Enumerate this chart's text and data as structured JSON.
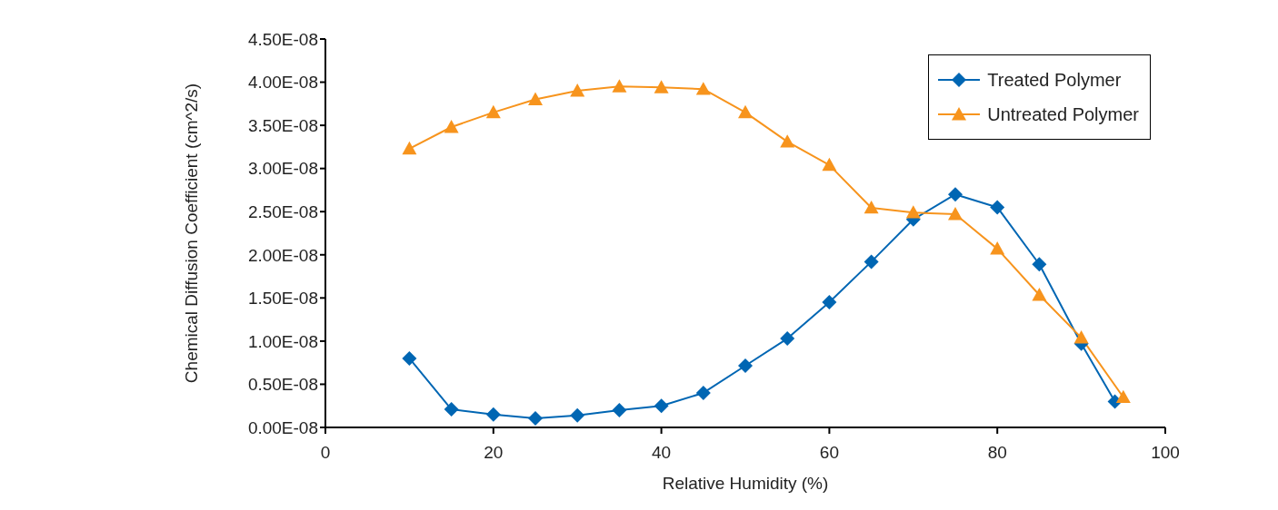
{
  "chart_data": {
    "type": "line",
    "xlabel": "Relative Humidity (%)",
    "ylabel": "Chemical Diffusion Coefficient (cm^2/s)",
    "xlim": [
      0,
      100
    ],
    "xticks": [
      0,
      20,
      40,
      60,
      80,
      100
    ],
    "ylim": [
      0,
      4.5e-08
    ],
    "yticks": [
      {
        "value": 0,
        "label": "0.00E-08"
      },
      {
        "value": 5e-09,
        "label": "0.50E-08"
      },
      {
        "value": 1e-08,
        "label": "1.00E-08"
      },
      {
        "value": 1.5e-08,
        "label": "1.50E-08"
      },
      {
        "value": 2e-08,
        "label": "2.00E-08"
      },
      {
        "value": 2.5e-08,
        "label": "2.50E-08"
      },
      {
        "value": 3e-08,
        "label": "3.00E-08"
      },
      {
        "value": 3.5e-08,
        "label": "3.50E-08"
      },
      {
        "value": 4e-08,
        "label": "4.00E-08"
      },
      {
        "value": 4.5e-08,
        "label": "4.50E-08"
      }
    ],
    "grid": false,
    "legend": "top right",
    "line_style": "solid",
    "series": [
      {
        "name": "Treated Polymer",
        "color": "#0066b3",
        "marker": "diamond",
        "x": [
          10,
          15,
          20,
          25,
          30,
          35,
          40,
          45,
          50,
          55,
          60,
          65,
          70,
          75,
          80,
          85,
          90,
          94
        ],
        "values": [
          8e-09,
          2.1e-09,
          1.5e-09,
          1.05e-09,
          1.4e-09,
          2e-09,
          2.5e-09,
          4e-09,
          7.15e-09,
          1.03e-08,
          1.45e-08,
          1.92e-08,
          2.41e-08,
          2.7e-08,
          2.55e-08,
          1.89e-08,
          9.7e-09,
          3e-09
        ]
      },
      {
        "name": "Untreated Polymer",
        "color": "#f7941d",
        "marker": "triangle",
        "x": [
          10,
          15,
          20,
          25,
          30,
          35,
          40,
          45,
          50,
          55,
          60,
          65,
          70,
          75,
          80,
          85,
          90,
          95
        ],
        "values": [
          3.23e-08,
          3.48e-08,
          3.65e-08,
          3.8e-08,
          3.9e-08,
          3.95e-08,
          3.94e-08,
          3.92e-08,
          3.65e-08,
          3.31e-08,
          3.04e-08,
          2.545e-08,
          2.49e-08,
          2.47e-08,
          2.07e-08,
          1.535e-08,
          1.04e-08,
          3.5e-09
        ]
      }
    ]
  }
}
